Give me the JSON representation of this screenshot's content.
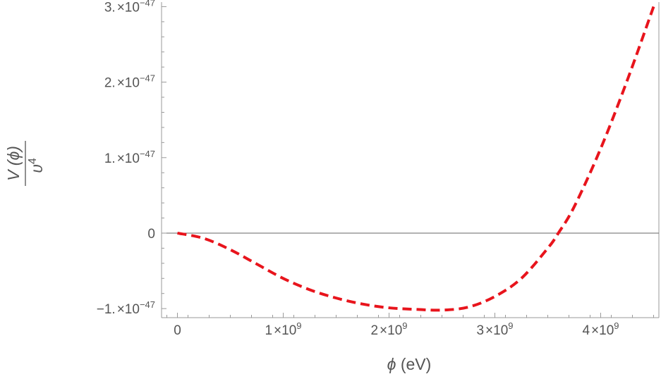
{
  "chart_data": {
    "type": "line",
    "title": "",
    "xlabel": {
      "symbol": "ϕ",
      "unit": " (eV)"
    },
    "ylabel": {
      "numerator": "V (ϕ)",
      "denominator": "υ",
      "denominator_exp": "4"
    },
    "xlim": [
      -150000000.0,
      4550000000.0
    ],
    "ylim": [
      -1.12e-47,
      3.06e-47
    ],
    "x_ticks": [
      {
        "value": 0,
        "label": "0"
      },
      {
        "value": 1000000000.0,
        "mantissa": "1",
        "times": "×",
        "base": "10",
        "exp": "9"
      },
      {
        "value": 2000000000.0,
        "mantissa": "2",
        "times": "×",
        "base": "10",
        "exp": "9"
      },
      {
        "value": 3000000000.0,
        "mantissa": "3",
        "times": "×",
        "base": "10",
        "exp": "9"
      },
      {
        "value": 4000000000.0,
        "mantissa": "4",
        "times": "×",
        "base": "10",
        "exp": "9"
      }
    ],
    "y_ticks": [
      {
        "value": -1e-47,
        "mantissa": "−1.",
        "times": "×",
        "base": "10",
        "exp": "−47"
      },
      {
        "value": 0,
        "label": "0"
      },
      {
        "value": 1e-47,
        "mantissa": "1.",
        "times": "×",
        "base": "10",
        "exp": "−47"
      },
      {
        "value": 2e-47,
        "mantissa": "2.",
        "times": "×",
        "base": "10",
        "exp": "−47"
      },
      {
        "value": 3e-47,
        "mantissa": "3.",
        "times": "×",
        "base": "10",
        "exp": "−47"
      }
    ],
    "grid": false,
    "series": [
      {
        "style": "dashed",
        "color": "#e8141c",
        "x": [
          0,
          250000000.0,
          500000000.0,
          750000000.0,
          1000000000.0,
          1250000000.0,
          1500000000.0,
          1750000000.0,
          2000000000.0,
          2250000000.0,
          2500000000.0,
          2750000000.0,
          3000000000.0,
          3250000000.0,
          3500000000.0,
          3600000000.0,
          3750000000.0,
          4000000000.0,
          4250000000.0,
          4500000000.0
        ],
        "y": [
          0,
          -7e-49,
          -2.2e-48,
          -4.1e-48,
          -6e-48,
          -7.5e-48,
          -8.6e-48,
          -9.4e-48,
          -9.9e-48,
          -1.01e-47,
          -1.02e-47,
          -9.8e-48,
          -8.4e-48,
          -6e-48,
          -2e-48,
          0,
          3.5e-48,
          1.12e-47,
          2.02e-47,
          3e-47
        ]
      }
    ]
  }
}
